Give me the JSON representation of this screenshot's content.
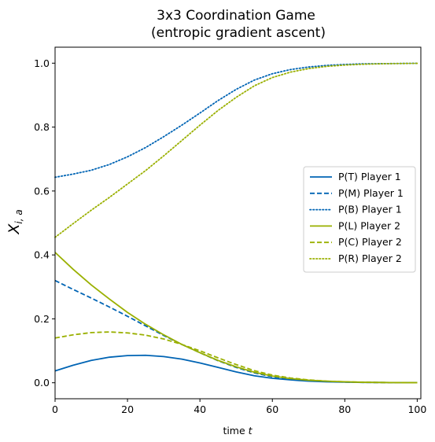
{
  "chart_data": {
    "type": "line",
    "title_line1": "3x3 Coordination Game",
    "title_line2": "(entropic gradient ascent)",
    "xlabel_main": "time ",
    "xlabel_var": "t",
    "ylabel_base": "X",
    "ylabel_sub": "i, a",
    "xlim": [
      0,
      101
    ],
    "ylim": [
      -0.05,
      1.05
    ],
    "xticks": [
      0,
      20,
      40,
      60,
      80,
      100
    ],
    "xtick_labels": [
      "0",
      "20",
      "40",
      "60",
      "80",
      "100"
    ],
    "yticks": [
      0.0,
      0.2,
      0.4,
      0.6,
      0.8,
      1.0
    ],
    "ytick_labels": [
      "0.0",
      "0.2",
      "0.4",
      "0.6",
      "0.8",
      "1.0"
    ],
    "grid": false,
    "legend_position": "center-right",
    "x": [
      0,
      5,
      10,
      15,
      20,
      25,
      30,
      35,
      40,
      45,
      50,
      55,
      60,
      65,
      70,
      75,
      80,
      85,
      90,
      95,
      100
    ],
    "series": [
      {
        "name": "P(T) Player 1",
        "color": "#0064b4",
        "dash": "solid",
        "values": [
          0.037,
          0.055,
          0.07,
          0.08,
          0.085,
          0.086,
          0.082,
          0.074,
          0.062,
          0.048,
          0.034,
          0.022,
          0.014,
          0.009,
          0.005,
          0.003,
          0.002,
          0.001,
          0.001,
          0.0005,
          0.0003
        ]
      },
      {
        "name": "P(M) Player 1",
        "color": "#0064b4",
        "dash": "dashed",
        "values": [
          0.32,
          0.292,
          0.265,
          0.237,
          0.208,
          0.178,
          0.148,
          0.12,
          0.094,
          0.069,
          0.048,
          0.031,
          0.019,
          0.011,
          0.007,
          0.004,
          0.002,
          0.0012,
          0.0007,
          0.0004,
          0.0002
        ]
      },
      {
        "name": "P(B) Player 1",
        "color": "#0064b4",
        "dash": "dotted",
        "values": [
          0.643,
          0.653,
          0.665,
          0.683,
          0.707,
          0.736,
          0.77,
          0.806,
          0.844,
          0.883,
          0.918,
          0.947,
          0.967,
          0.98,
          0.988,
          0.993,
          0.996,
          0.998,
          0.9985,
          0.999,
          0.9995
        ]
      },
      {
        "name": "P(L) Player 2",
        "color": "#9ab000",
        "dash": "solid",
        "values": [
          0.408,
          0.355,
          0.306,
          0.262,
          0.22,
          0.183,
          0.15,
          0.12,
          0.094,
          0.07,
          0.05,
          0.033,
          0.021,
          0.013,
          0.008,
          0.005,
          0.003,
          0.0015,
          0.0009,
          0.0005,
          0.0003
        ]
      },
      {
        "name": "P(C) Player 2",
        "color": "#9ab000",
        "dash": "dashed",
        "values": [
          0.14,
          0.15,
          0.157,
          0.159,
          0.156,
          0.149,
          0.137,
          0.12,
          0.1,
          0.078,
          0.057,
          0.038,
          0.024,
          0.015,
          0.009,
          0.005,
          0.003,
          0.0017,
          0.001,
          0.0006,
          0.0003
        ]
      },
      {
        "name": "P(R) Player 2",
        "color": "#9ab000",
        "dash": "dotted",
        "values": [
          0.455,
          0.498,
          0.54,
          0.58,
          0.622,
          0.664,
          0.71,
          0.758,
          0.806,
          0.852,
          0.893,
          0.929,
          0.955,
          0.972,
          0.983,
          0.99,
          0.994,
          0.9966,
          0.998,
          0.9989,
          0.9994
        ]
      }
    ]
  }
}
